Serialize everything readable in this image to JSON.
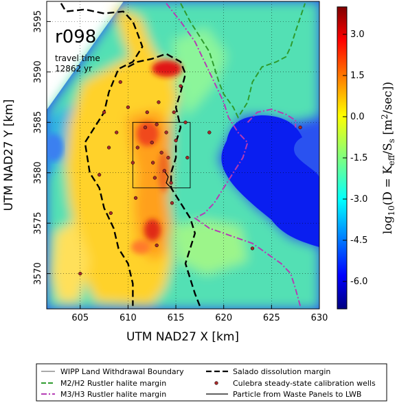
{
  "chart_data": {
    "type": "heatmap",
    "realization_label": "r098",
    "annotation_line1": "travel time",
    "annotation_line2": "12862 yr",
    "xlabel": "UTM NAD27 X [km]",
    "ylabel": "UTM NAD27 Y [km]",
    "xlim": [
      601.5,
      630
    ],
    "ylim": [
      3566.5,
      3597
    ],
    "x_ticks": [
      605,
      610,
      615,
      620,
      625,
      630
    ],
    "y_ticks": [
      3570,
      3575,
      3580,
      3585,
      3590,
      3595
    ],
    "grid": true,
    "colorbar": {
      "label": "log10(D = K_eff / S_s  [m²/sec])",
      "range": [
        -7.0,
        4.0
      ],
      "ticks": [
        "3.0",
        "1.5",
        "0.0",
        "-1.5",
        "-3.0",
        "-4.5",
        "-6.0"
      ],
      "tick_values": [
        3.0,
        1.5,
        0.0,
        -1.5,
        -3.0,
        -4.5,
        -6.0
      ],
      "colormap": "jet"
    },
    "wlb_box": {
      "x": [
        610.5,
        616.5
      ],
      "y": [
        3578.5,
        3585.0
      ]
    },
    "salado_margin": [
      [
        603.0,
        3596.8
      ],
      [
        603.5,
        3596.0
      ],
      [
        605.5,
        3596.2
      ],
      [
        607.5,
        3595.8
      ],
      [
        609.5,
        3596.0
      ],
      [
        610.5,
        3595.0
      ],
      [
        611.0,
        3593.8
      ],
      [
        611.5,
        3592.5
      ],
      [
        610.5,
        3591.0
      ],
      [
        609.0,
        3590.3
      ],
      [
        608.0,
        3588.0
      ],
      [
        607.5,
        3586.0
      ],
      [
        606.5,
        3584.5
      ],
      [
        605.5,
        3583.0
      ],
      [
        606.0,
        3580.0
      ],
      [
        607.0,
        3578.5
      ],
      [
        607.5,
        3576.5
      ],
      [
        608.5,
        3574.5
      ],
      [
        609.0,
        3572.5
      ],
      [
        610.0,
        3571.0
      ],
      [
        610.5,
        3569.0
      ],
      [
        610.5,
        3566.8
      ]
    ],
    "salado_margin_upper": [
      [
        610.0,
        3590.5
      ],
      [
        611.0,
        3591.0
      ],
      [
        612.5,
        3591.3
      ],
      [
        614.0,
        3591.8
      ],
      [
        615.5,
        3591.0
      ],
      [
        616.0,
        3589.8
      ],
      [
        615.5,
        3588.0
      ],
      [
        615.0,
        3586.5
      ],
      [
        615.5,
        3584.5
      ],
      [
        615.0,
        3583.0
      ],
      [
        615.0,
        3581.5
      ],
      [
        614.5,
        3580.0
      ],
      [
        614.5,
        3578.5
      ],
      [
        615.5,
        3577.0
      ],
      [
        616.5,
        3575.5
      ],
      [
        617.0,
        3574.0
      ],
      [
        616.5,
        3572.5
      ],
      [
        616.0,
        3571.0
      ],
      [
        616.5,
        3569.5
      ],
      [
        617.0,
        3568.0
      ],
      [
        617.5,
        3566.8
      ]
    ],
    "m2h2_margin": [
      [
        615.5,
        3596.8
      ],
      [
        616.5,
        3595.0
      ],
      [
        617.5,
        3593.5
      ],
      [
        618.5,
        3592.0
      ],
      [
        619.0,
        3590.5
      ],
      [
        619.5,
        3589.0
      ],
      [
        620.0,
        3587.8
      ],
      [
        621.0,
        3586.5
      ],
      [
        621.5,
        3585.5
      ],
      [
        622.5,
        3587.0
      ],
      [
        623.0,
        3589.0
      ],
      [
        624.0,
        3590.5
      ],
      [
        625.5,
        3591.0
      ],
      [
        626.5,
        3591.5
      ],
      [
        627.0,
        3592.5
      ],
      [
        627.5,
        3594.0
      ],
      [
        628.5,
        3596.8
      ]
    ],
    "m3h3_margin": [
      [
        614.0,
        3596.8
      ],
      [
        615.5,
        3595.0
      ],
      [
        617.0,
        3593.0
      ],
      [
        618.0,
        3591.0
      ],
      [
        619.0,
        3589.0
      ],
      [
        620.0,
        3587.0
      ],
      [
        620.5,
        3585.5
      ],
      [
        621.5,
        3584.0
      ],
      [
        622.5,
        3583.0
      ],
      [
        622.0,
        3581.5
      ],
      [
        621.0,
        3580.0
      ],
      [
        620.0,
        3578.5
      ],
      [
        619.0,
        3577.0
      ],
      [
        618.0,
        3576.0
      ],
      [
        617.0,
        3575.5
      ],
      [
        618.5,
        3574.5
      ],
      [
        620.0,
        3574.0
      ],
      [
        621.5,
        3573.5
      ],
      [
        623.0,
        3573.0
      ],
      [
        624.5,
        3572.0
      ],
      [
        626.0,
        3571.0
      ],
      [
        627.0,
        3570.0
      ],
      [
        627.5,
        3568.5
      ],
      [
        628.0,
        3566.8
      ]
    ],
    "m3h3_lobe": [
      [
        622.5,
        3585.0
      ],
      [
        623.5,
        3586.0
      ],
      [
        625.0,
        3586.3
      ],
      [
        626.5,
        3585.8
      ],
      [
        627.5,
        3585.2
      ],
      [
        627.5,
        3584.5
      ]
    ],
    "particle_path": [
      [
        613.8,
        3580.2
      ],
      [
        614.2,
        3579.6
      ],
      [
        614.0,
        3579.0
      ],
      [
        614.4,
        3578.6
      ]
    ],
    "wells": [
      [
        605.0,
        3570.0
      ],
      [
        607.0,
        3579.8
      ],
      [
        607.5,
        3586.0
      ],
      [
        608.0,
        3582.5
      ],
      [
        608.2,
        3576.0
      ],
      [
        608.8,
        3584.0
      ],
      [
        609.2,
        3589.0
      ],
      [
        610.0,
        3586.5
      ],
      [
        610.5,
        3581.0
      ],
      [
        610.8,
        3577.5
      ],
      [
        611.0,
        3582.5
      ],
      [
        611.8,
        3584.5
      ],
      [
        612.0,
        3586.0
      ],
      [
        612.5,
        3583.0
      ],
      [
        612.6,
        3581.0
      ],
      [
        612.8,
        3579.5
      ],
      [
        613.0,
        3584.8
      ],
      [
        613.2,
        3587.0
      ],
      [
        613.5,
        3582.0
      ],
      [
        613.8,
        3580.2
      ],
      [
        614.0,
        3584.0
      ],
      [
        614.2,
        3581.5
      ],
      [
        614.5,
        3579.0
      ],
      [
        614.6,
        3577.0
      ],
      [
        614.8,
        3586.0
      ],
      [
        615.0,
        3583.2
      ],
      [
        615.5,
        3588.6
      ],
      [
        616.0,
        3585.0
      ],
      [
        616.2,
        3581.5
      ],
      [
        618.5,
        3584.0
      ],
      [
        623.0,
        3572.5
      ],
      [
        628.0,
        3584.5
      ],
      [
        613.0,
        3572.8
      ]
    ],
    "legend": [
      "WIPP Land Withdrawal Boundary",
      "Salado dissolution margin",
      "M2/H2 Rustler halite margin",
      "Culebra steady-state calibration wells",
      "M3/H3 Rustler halite margin",
      "Particle from Waste Panels to LWB"
    ],
    "colors": {
      "m2h2": "#2e9b2e",
      "m3h3": "#b43cb4",
      "salado": "#000000",
      "well_fill": "#a52a2a",
      "ocean": "#1a2fe0"
    }
  }
}
